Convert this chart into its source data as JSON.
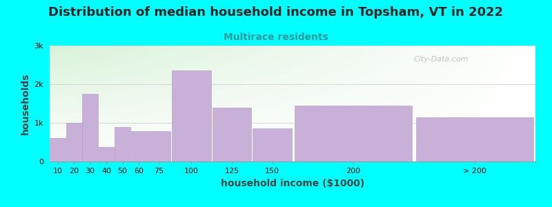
{
  "title": "Distribution of median household income in Topsham, VT in 2022",
  "subtitle": "Multirace residents",
  "xlabel": "household income ($1000)",
  "ylabel": "households",
  "background_color": "#00FFFF",
  "bar_color": "#c8b0d8",
  "bar_edge_color": "#b09ac0",
  "categories": [
    "10",
    "20",
    "30",
    "40",
    "50",
    "60",
    "75",
    "100",
    "125",
    "150",
    "200",
    "> 200"
  ],
  "lefts": [
    0,
    10,
    20,
    30,
    40,
    50,
    60,
    75,
    100,
    125,
    150,
    225
  ],
  "widths": [
    10,
    10,
    10,
    10,
    10,
    10,
    15,
    25,
    25,
    25,
    75,
    75
  ],
  "values": [
    600,
    1000,
    1750,
    380,
    900,
    780,
    780,
    2350,
    1400,
    850,
    1450,
    1150
  ],
  "xtick_positions": [
    5,
    15,
    25,
    35,
    45,
    55,
    67.5,
    87.5,
    112.5,
    137.5,
    187.5,
    262.5
  ],
  "xtick_labels": [
    "10",
    "20",
    "30",
    "40",
    "50",
    "60",
    "75",
    "100",
    "125",
    "150",
    "200",
    "> 200"
  ],
  "ylim": [
    0,
    3000
  ],
  "yticks": [
    0,
    1000,
    2000,
    3000
  ],
  "ytick_labels": [
    "0",
    "1k",
    "2k",
    "3k"
  ],
  "title_fontsize": 13,
  "subtitle_fontsize": 10,
  "axis_label_fontsize": 10,
  "tick_fontsize": 8,
  "watermark_text": "City-Data.com",
  "watermark_color": "#aaaaaa",
  "title_color": "#222222",
  "subtitle_color": "#339999",
  "label_color": "#444444"
}
